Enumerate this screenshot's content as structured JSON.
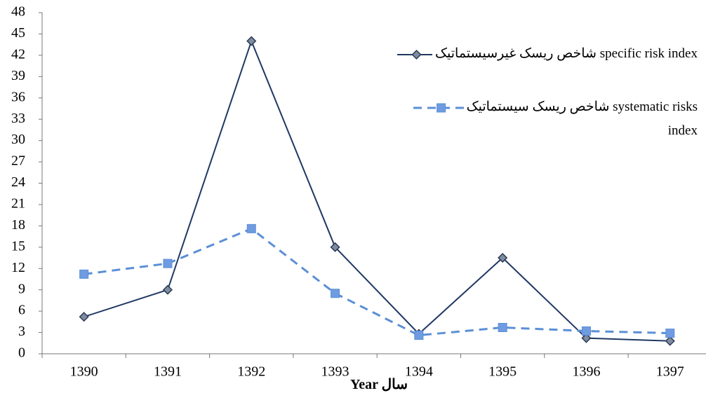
{
  "chart_data": {
    "type": "line",
    "x_label": "Year سال",
    "categories": [
      "1390",
      "1391",
      "1392",
      "1393",
      "1394",
      "1395",
      "1396",
      "1397"
    ],
    "series": [
      {
        "name": "شاخص ریسک غیرسیستماتیک  specific risk  index",
        "color": "#1f3864",
        "marker": "diamond",
        "dashed": false,
        "values": [
          5.2,
          9,
          44,
          15,
          2.8,
          13.5,
          2.2,
          1.8
        ]
      },
      {
        "name": "شاخص ریسک سیستماتیک  systematic risks index",
        "color": "#5b8fd6",
        "marker": "square",
        "dashed": true,
        "values": [
          11.2,
          12.7,
          17.6,
          8.5,
          2.6,
          3.7,
          3.2,
          2.9
        ]
      }
    ],
    "ylim": [
      0,
      48
    ],
    "yticks": [
      0,
      3,
      6,
      9,
      12,
      15,
      18,
      21,
      24,
      27,
      30,
      33,
      36,
      39,
      42,
      45,
      48
    ],
    "grid": false,
    "legend": "upper right"
  }
}
